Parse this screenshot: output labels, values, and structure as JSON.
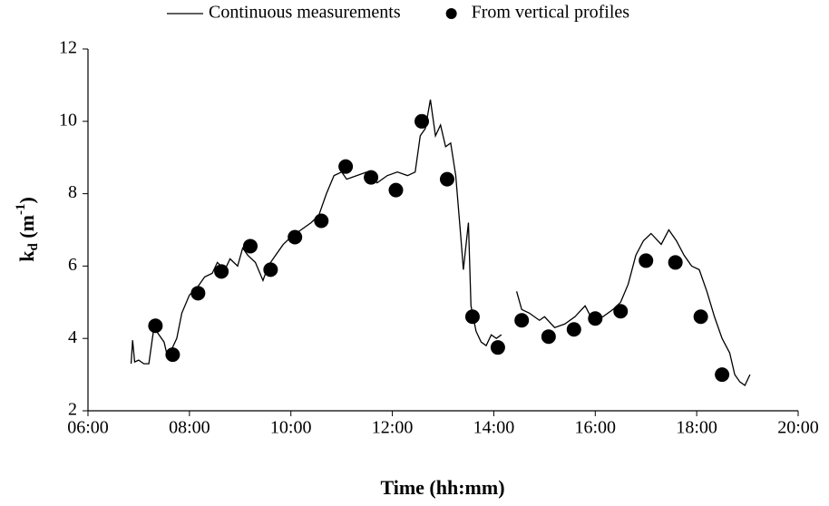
{
  "chart_data": {
    "type": "line",
    "x_label": "Time (hh:mm)",
    "y_label": [
      "k",
      "d",
      " (m",
      "-1",
      ")"
    ],
    "xlim": [
      6,
      20
    ],
    "xticks": [
      {
        "value": 6,
        "label": "06:00"
      },
      {
        "value": 8,
        "label": "08:00"
      },
      {
        "value": 10,
        "label": "10:00"
      },
      {
        "value": 12,
        "label": "12:00"
      },
      {
        "value": 14,
        "label": "14:00"
      },
      {
        "value": 16,
        "label": "16:00"
      },
      {
        "value": 18,
        "label": "18:00"
      },
      {
        "value": 20,
        "label": "20:00"
      }
    ],
    "ylim": [
      2,
      12
    ],
    "yticks": [
      2,
      4,
      6,
      8,
      10,
      12
    ],
    "legend": "top",
    "series": [
      {
        "name": "Continuous measurements",
        "type": "line",
        "color": "#000000",
        "x": [
          6.85,
          6.88,
          6.92,
          7.0,
          7.1,
          7.2,
          7.3,
          7.4,
          7.5,
          7.55,
          7.65,
          7.75,
          7.85,
          8.0,
          8.15,
          8.3,
          8.45,
          8.55,
          8.7,
          8.8,
          8.95,
          9.05,
          9.15,
          9.3,
          9.45,
          9.55,
          9.7,
          9.85,
          10.0,
          10.2,
          10.4,
          10.55,
          10.7,
          10.85,
          11.0,
          11.1,
          11.3,
          11.5,
          11.7,
          11.9,
          12.1,
          12.3,
          12.45,
          12.55,
          12.65,
          12.75,
          12.85,
          12.95,
          13.05,
          13.15,
          13.25,
          13.35,
          13.4,
          13.5,
          13.55,
          13.65,
          13.75,
          13.85,
          13.95,
          14.05,
          14.15,
          14.3,
          14.45,
          14.55,
          14.7,
          14.9,
          15.0,
          15.2,
          15.4,
          15.6,
          15.8,
          15.95,
          16.15,
          16.35,
          16.5,
          16.65,
          16.8,
          16.95,
          17.1,
          17.3,
          17.45,
          17.6,
          17.75,
          17.9,
          18.05,
          18.2,
          18.35,
          18.5,
          18.65,
          18.75,
          18.85,
          18.95,
          19.05
        ],
        "values": [
          3.3,
          3.95,
          3.35,
          3.4,
          3.3,
          3.3,
          4.3,
          4.1,
          3.9,
          3.6,
          3.7,
          4.0,
          4.7,
          5.2,
          5.4,
          5.7,
          5.8,
          6.1,
          5.9,
          6.2,
          6.0,
          6.5,
          6.3,
          6.1,
          5.6,
          6.0,
          6.3,
          6.6,
          6.8,
          7.0,
          7.2,
          7.4,
          8.0,
          8.5,
          8.6,
          8.4,
          8.5,
          8.6,
          8.3,
          8.5,
          8.6,
          8.5,
          8.6,
          9.6,
          9.8,
          10.6,
          9.6,
          9.9,
          9.3,
          9.4,
          8.5,
          6.8,
          5.9,
          7.2,
          4.9,
          4.2,
          3.9,
          3.8,
          4.1,
          4.0,
          4.1,
          null,
          5.3,
          4.8,
          4.7,
          4.5,
          4.6,
          4.3,
          4.4,
          4.6,
          4.9,
          4.5,
          4.6,
          4.8,
          5.0,
          5.5,
          6.3,
          6.7,
          6.9,
          6.6,
          7.0,
          6.7,
          6.3,
          6.0,
          5.9,
          5.3,
          4.6,
          4.0,
          3.6,
          3.0,
          2.8,
          2.7,
          3.0
        ]
      },
      {
        "name": "From vertical profiles",
        "type": "scatter",
        "color": "#000000",
        "x": [
          7.33,
          7.67,
          8.17,
          8.63,
          9.2,
          9.6,
          10.08,
          10.6,
          11.08,
          11.58,
          12.07,
          12.58,
          13.08,
          13.58,
          14.08,
          14.55,
          15.08,
          15.58,
          16.0,
          16.5,
          17.0,
          17.58,
          18.08,
          18.5
        ],
        "values": [
          4.35,
          3.55,
          5.25,
          5.85,
          6.55,
          5.9,
          6.8,
          7.25,
          8.75,
          8.45,
          8.1,
          10.0,
          8.4,
          4.6,
          3.75,
          4.5,
          4.05,
          4.25,
          4.55,
          4.75,
          6.15,
          6.1,
          4.6,
          3.0
        ]
      }
    ]
  }
}
